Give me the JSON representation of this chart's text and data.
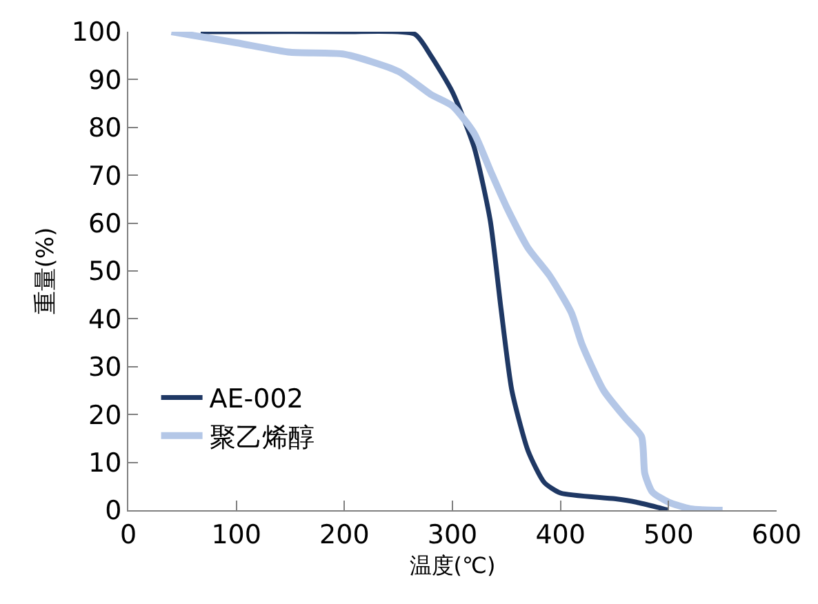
{
  "chart_data": {
    "type": "line",
    "xlabel": "温度(℃)",
    "ylabel": "重量(%)",
    "xlim": [
      0,
      600
    ],
    "xticks": [
      0,
      100,
      200,
      300,
      400,
      500,
      600
    ],
    "ylim": [
      0,
      100
    ],
    "yticks": [
      0,
      10,
      20,
      30,
      40,
      50,
      60,
      70,
      80,
      90,
      100
    ],
    "grid": false,
    "legend": "bottom left",
    "marker": "none",
    "line_style": "solid",
    "series": [
      {
        "name": "AE-002",
        "color": "#1f3864",
        "x": [
          67,
          100,
          200,
          265,
          280,
          300,
          320,
          335,
          345,
          355,
          370,
          385,
          400,
          450,
          470,
          490,
          500
        ],
        "values": [
          100,
          100,
          100,
          99.5,
          95,
          87.4,
          75.9,
          60.5,
          42,
          25,
          12.4,
          5.8,
          3.6,
          2.4,
          1.7,
          0.6,
          0
        ]
      },
      {
        "name": "聚乙烯醇",
        "color": "#b4c7e7",
        "x": [
          40,
          100,
          150,
          200,
          250,
          280,
          300,
          320,
          335,
          350,
          370,
          390,
          410,
          420,
          440,
          460,
          475,
          478,
          485,
          500,
          520,
          550
        ],
        "values": [
          100,
          97.7,
          95.7,
          95.3,
          91.7,
          86.9,
          84.5,
          78.8,
          71,
          63.4,
          54.8,
          49,
          41.3,
          34.6,
          25,
          19.3,
          15.4,
          7.7,
          3.8,
          1.7,
          0.3,
          0
        ]
      }
    ]
  }
}
